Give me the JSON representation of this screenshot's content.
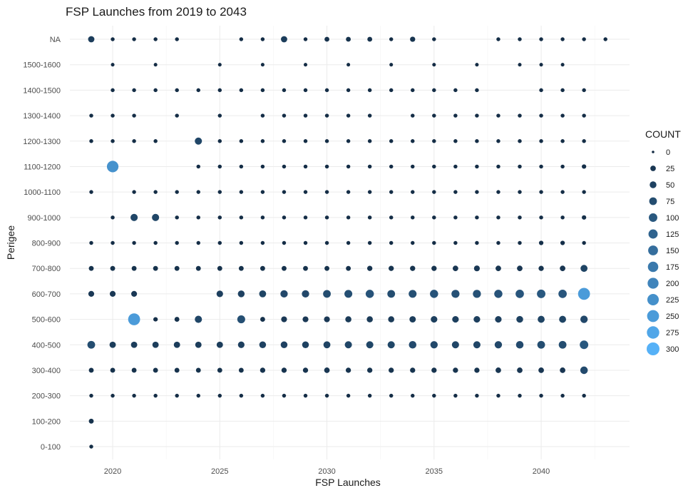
{
  "chart_data": {
    "type": "scatter",
    "title": "FSP Launches from 2019 to 2043",
    "xlabel": "FSP Launches",
    "ylabel": "Perigee",
    "xlim": [
      2017.9,
      2044.1
    ],
    "x_ticks": [
      2020,
      2025,
      2030,
      2035,
      2040
    ],
    "y_categories": [
      "0-100",
      "100-200",
      "200-300",
      "300-400",
      "400-500",
      "500-600",
      "600-700",
      "700-800",
      "800-900",
      "900-1000",
      "1000-1100",
      "1100-1200",
      "1200-1300",
      "1300-1400",
      "1400-1500",
      "1500-1600",
      "NA"
    ],
    "legend": {
      "title": "COUNT",
      "position": "right",
      "values": [
        0,
        25,
        50,
        75,
        100,
        125,
        150,
        175,
        200,
        225,
        250,
        275,
        300
      ]
    },
    "colors": {
      "low": "#132b43",
      "high": "#56b1f7",
      "grid": "#ebebeb",
      "background": "#ffffff"
    },
    "size_range_count": [
      0,
      300
    ],
    "points": [
      {
        "perigee": "NA",
        "counts": {
          "2019": 40,
          "2020": 5,
          "2021": 5,
          "2022": 5,
          "2023": 5,
          "2026": 5,
          "2027": 5,
          "2028": 40,
          "2029": 5,
          "2030": 15,
          "2031": 15,
          "2032": 15,
          "2033": 5,
          "2034": 20,
          "2035": 5,
          "2038": 5,
          "2039": 5,
          "2040": 5,
          "2041": 5,
          "2042": 5,
          "2043": 5
        }
      },
      {
        "perigee": "1500-1600",
        "counts": {
          "2020": 3,
          "2022": 3,
          "2025": 3,
          "2027": 3,
          "2029": 3,
          "2031": 3,
          "2033": 3,
          "2035": 3,
          "2037": 3,
          "2039": 3,
          "2040": 3,
          "2041": 3
        }
      },
      {
        "perigee": "1400-1500",
        "counts": {
          "2020": 5,
          "2021": 5,
          "2022": 5,
          "2023": 5,
          "2024": 5,
          "2025": 5,
          "2026": 5,
          "2027": 5,
          "2028": 5,
          "2029": 5,
          "2030": 5,
          "2031": 5,
          "2032": 5,
          "2033": 5,
          "2034": 5,
          "2035": 5,
          "2036": 5,
          "2037": 5,
          "2040": 5,
          "2041": 5,
          "2042": 5
        }
      },
      {
        "perigee": "1300-1400",
        "counts": {
          "2019": 5,
          "2020": 5,
          "2021": 5,
          "2023": 5,
          "2025": 5,
          "2027": 5,
          "2028": 5,
          "2029": 5,
          "2030": 5,
          "2031": 5,
          "2032": 5,
          "2034": 5,
          "2035": 5,
          "2036": 5,
          "2037": 5,
          "2038": 5,
          "2039": 5,
          "2040": 5,
          "2041": 5,
          "2042": 5
        }
      },
      {
        "perigee": "1200-1300",
        "counts": {
          "2019": 5,
          "2020": 5,
          "2021": 5,
          "2022": 5,
          "2024": 60,
          "2025": 5,
          "2026": 5,
          "2027": 5,
          "2028": 5,
          "2029": 5,
          "2030": 5,
          "2031": 5,
          "2032": 5,
          "2033": 5,
          "2034": 5,
          "2035": 5,
          "2036": 5,
          "2037": 5,
          "2038": 5,
          "2039": 5,
          "2040": 5,
          "2041": 5,
          "2042": 5
        }
      },
      {
        "perigee": "1100-1200",
        "counts": {
          "2020": 230,
          "2024": 5,
          "2025": 5,
          "2026": 5,
          "2027": 5,
          "2028": 5,
          "2029": 5,
          "2030": 5,
          "2031": 5,
          "2032": 5,
          "2033": 5,
          "2034": 5,
          "2035": 5,
          "2036": 5,
          "2037": 5,
          "2038": 5,
          "2039": 5,
          "2040": 5,
          "2041": 5,
          "2042": 10
        }
      },
      {
        "perigee": "1000-1100",
        "counts": {
          "2019": 5,
          "2021": 5,
          "2022": 5,
          "2023": 5,
          "2024": 5,
          "2025": 5,
          "2026": 5,
          "2027": 5,
          "2028": 5,
          "2029": 5,
          "2030": 5,
          "2031": 5,
          "2032": 5,
          "2033": 5,
          "2034": 5,
          "2035": 5,
          "2036": 5,
          "2037": 5,
          "2038": 5,
          "2039": 5,
          "2040": 5,
          "2041": 5,
          "2042": 5
        }
      },
      {
        "perigee": "900-1000",
        "counts": {
          "2020": 5,
          "2021": 60,
          "2022": 60,
          "2023": 5,
          "2024": 5,
          "2025": 5,
          "2026": 5,
          "2027": 5,
          "2028": 5,
          "2029": 5,
          "2030": 5,
          "2031": 5,
          "2032": 5,
          "2033": 5,
          "2034": 5,
          "2035": 5,
          "2036": 5,
          "2037": 5,
          "2038": 5,
          "2039": 5,
          "2040": 5,
          "2041": 5,
          "2042": 10
        }
      },
      {
        "perigee": "800-900",
        "counts": {
          "2019": 5,
          "2020": 5,
          "2021": 5,
          "2022": 5,
          "2023": 5,
          "2024": 5,
          "2025": 5,
          "2026": 5,
          "2027": 5,
          "2028": 5,
          "2029": 5,
          "2030": 5,
          "2031": 5,
          "2032": 5,
          "2033": 5,
          "2034": 5,
          "2035": 5,
          "2036": 5,
          "2037": 5,
          "2038": 5,
          "2039": 5,
          "2040": 10,
          "2041": 10,
          "2042": 5
        }
      },
      {
        "perigee": "700-800",
        "counts": {
          "2019": 15,
          "2020": 15,
          "2021": 15,
          "2022": 15,
          "2023": 15,
          "2024": 15,
          "2025": 15,
          "2026": 15,
          "2027": 15,
          "2028": 15,
          "2029": 15,
          "2030": 15,
          "2031": 15,
          "2032": 20,
          "2033": 20,
          "2034": 20,
          "2035": 20,
          "2036": 25,
          "2037": 30,
          "2038": 25,
          "2039": 25,
          "2040": 20,
          "2041": 25,
          "2042": 55
        }
      },
      {
        "perigee": "600-700",
        "counts": {
          "2019": 30,
          "2020": 30,
          "2021": 30,
          "2025": 45,
          "2026": 50,
          "2027": 55,
          "2028": 65,
          "2029": 65,
          "2030": 75,
          "2031": 80,
          "2032": 90,
          "2033": 75,
          "2034": 80,
          "2035": 90,
          "2036": 85,
          "2037": 85,
          "2038": 90,
          "2039": 95,
          "2040": 100,
          "2041": 95,
          "2042": 250
        }
      },
      {
        "perigee": "500-600",
        "counts": {
          "2021": 250,
          "2022": 10,
          "2023": 15,
          "2024": 60,
          "2026": 80,
          "2027": 15,
          "2028": 30,
          "2029": 30,
          "2030": 30,
          "2031": 35,
          "2032": 35,
          "2033": 35,
          "2034": 40,
          "2035": 45,
          "2036": 45,
          "2037": 45,
          "2038": 45,
          "2039": 50,
          "2040": 55,
          "2041": 55,
          "2042": 65
        }
      },
      {
        "perigee": "400-500",
        "counts": {
          "2019": 75,
          "2020": 40,
          "2021": 40,
          "2022": 40,
          "2023": 40,
          "2024": 40,
          "2025": 40,
          "2026": 45,
          "2027": 50,
          "2028": 50,
          "2029": 50,
          "2030": 55,
          "2031": 60,
          "2032": 60,
          "2033": 60,
          "2034": 70,
          "2035": 65,
          "2036": 60,
          "2037": 60,
          "2038": 65,
          "2039": 70,
          "2040": 75,
          "2041": 75,
          "2042": 100
        }
      },
      {
        "perigee": "300-400",
        "counts": {
          "2019": 15,
          "2020": 15,
          "2021": 15,
          "2022": 15,
          "2023": 15,
          "2024": 15,
          "2025": 15,
          "2026": 15,
          "2027": 20,
          "2028": 20,
          "2029": 20,
          "2030": 25,
          "2031": 20,
          "2032": 20,
          "2033": 20,
          "2034": 20,
          "2035": 20,
          "2036": 20,
          "2037": 20,
          "2038": 25,
          "2039": 25,
          "2040": 25,
          "2041": 25,
          "2042": 70
        }
      },
      {
        "perigee": "200-300",
        "counts": {
          "2019": 5,
          "2020": 5,
          "2021": 5,
          "2022": 5,
          "2023": 5,
          "2024": 5,
          "2025": 5,
          "2026": 5,
          "2027": 5,
          "2028": 5,
          "2029": 5,
          "2030": 5,
          "2031": 5,
          "2032": 5,
          "2033": 5,
          "2034": 5,
          "2035": 5,
          "2036": 5,
          "2037": 5,
          "2038": 5,
          "2039": 5,
          "2040": 5,
          "2041": 5,
          "2042": 5
        }
      },
      {
        "perigee": "100-200",
        "counts": {
          "2019": 15
        }
      },
      {
        "perigee": "0-100",
        "counts": {
          "2019": 5
        }
      }
    ]
  }
}
